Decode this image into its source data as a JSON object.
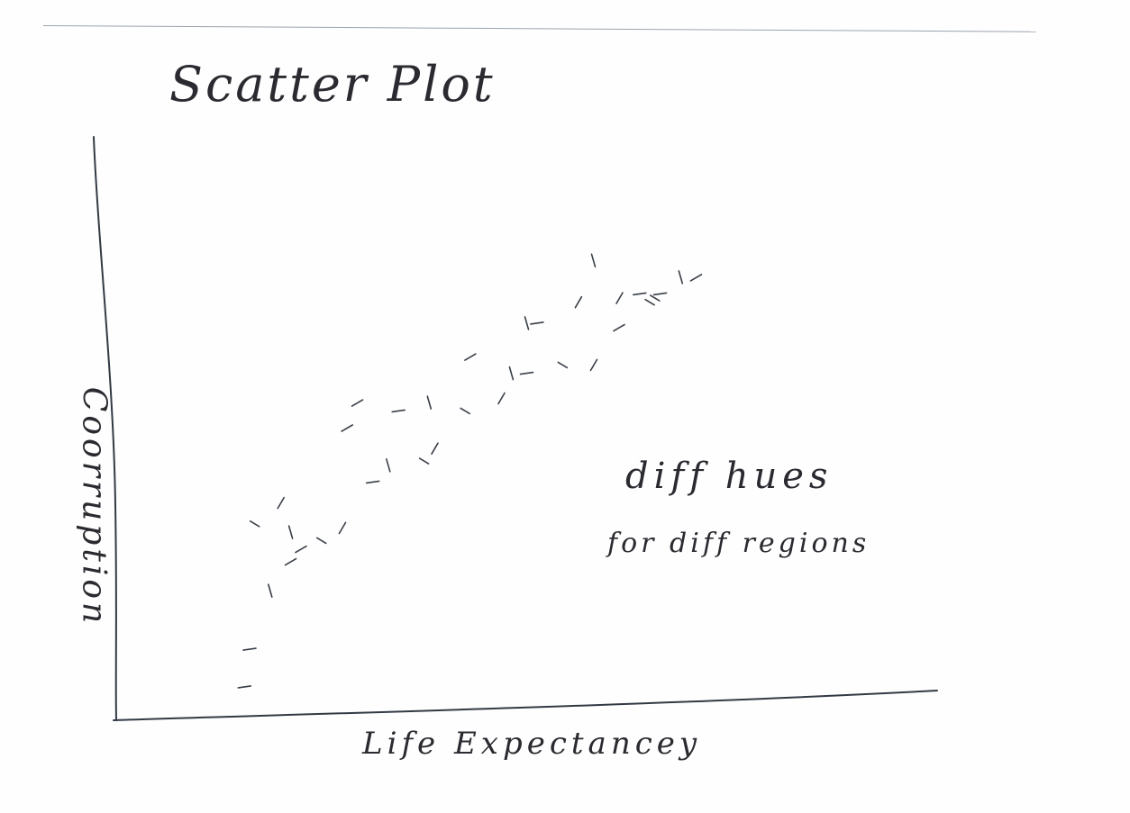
{
  "chart_data": {
    "type": "scatter",
    "title": "Scatter Plot",
    "xlabel": "Life Expectancey",
    "ylabel": "Coorruption",
    "annotations": [
      "diff hues",
      "for diff regions"
    ],
    "x": [
      2.5,
      3.0,
      3.4,
      4.0,
      4.4,
      2.6,
      3.4,
      3.6,
      2.7,
      3.2,
      5.0,
      5.3,
      4.5,
      6.0,
      6.2,
      5.5,
      6.1,
      4.7,
      6.8,
      7.5,
      8.0,
      7.7,
      6.9,
      8.7,
      9.3,
      8.2,
      8.0,
      9.8,
      10.4,
      9.0,
      10.6,
      11.0,
      11.3,
      10.5,
      9.8,
      10.2,
      9.3
    ],
    "y": [
      0.8,
      3.1,
      3.8,
      4.3,
      4.6,
      1.7,
      4.5,
      4.1,
      4.7,
      5.2,
      5.7,
      6.1,
      7.0,
      6.2,
      6.5,
      7.4,
      7.6,
      7.6,
      7.4,
      7.7,
      8.3,
      8.3,
      8.7,
      8.5,
      8.5,
      9.5,
      9.5,
      9.4,
      10.0,
      10.0,
      10.2,
      10.6,
      10.6,
      10.1,
      10.1,
      10.2,
      11.0
    ],
    "xlim": [
      0,
      16
    ],
    "ylim": [
      0,
      14
    ],
    "grid": false,
    "legend": "none"
  }
}
